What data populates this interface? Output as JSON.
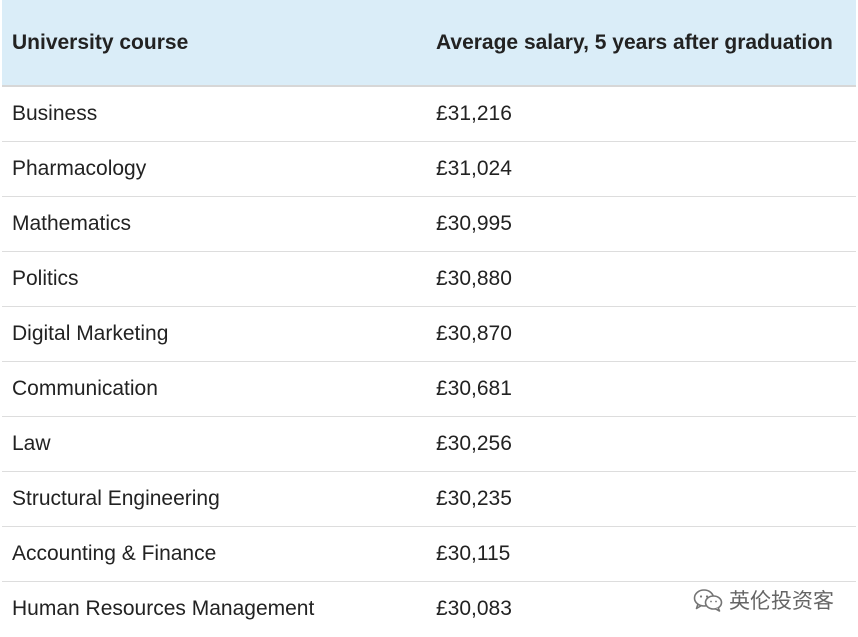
{
  "table": {
    "headers": [
      "University course",
      "Average salary, 5 years after graduation"
    ],
    "rows": [
      [
        "Business",
        "£31,216"
      ],
      [
        "Pharmacology",
        "£31,024"
      ],
      [
        "Mathematics",
        "£30,995"
      ],
      [
        "Politics",
        "£30,880"
      ],
      [
        "Digital Marketing",
        "£30,870"
      ],
      [
        "Communication",
        "£30,681"
      ],
      [
        "Law",
        "£30,256"
      ],
      [
        "Structural Engineering",
        "£30,235"
      ],
      [
        "Accounting & Finance",
        "£30,115"
      ],
      [
        "Human Resources Management",
        "£30,083"
      ]
    ]
  },
  "watermark": {
    "icon": "wechat-icon",
    "text": "英伦投资客"
  },
  "colors": {
    "header_bg": "#daedf8",
    "row_divider": "#dddddd",
    "text": "#222222"
  }
}
